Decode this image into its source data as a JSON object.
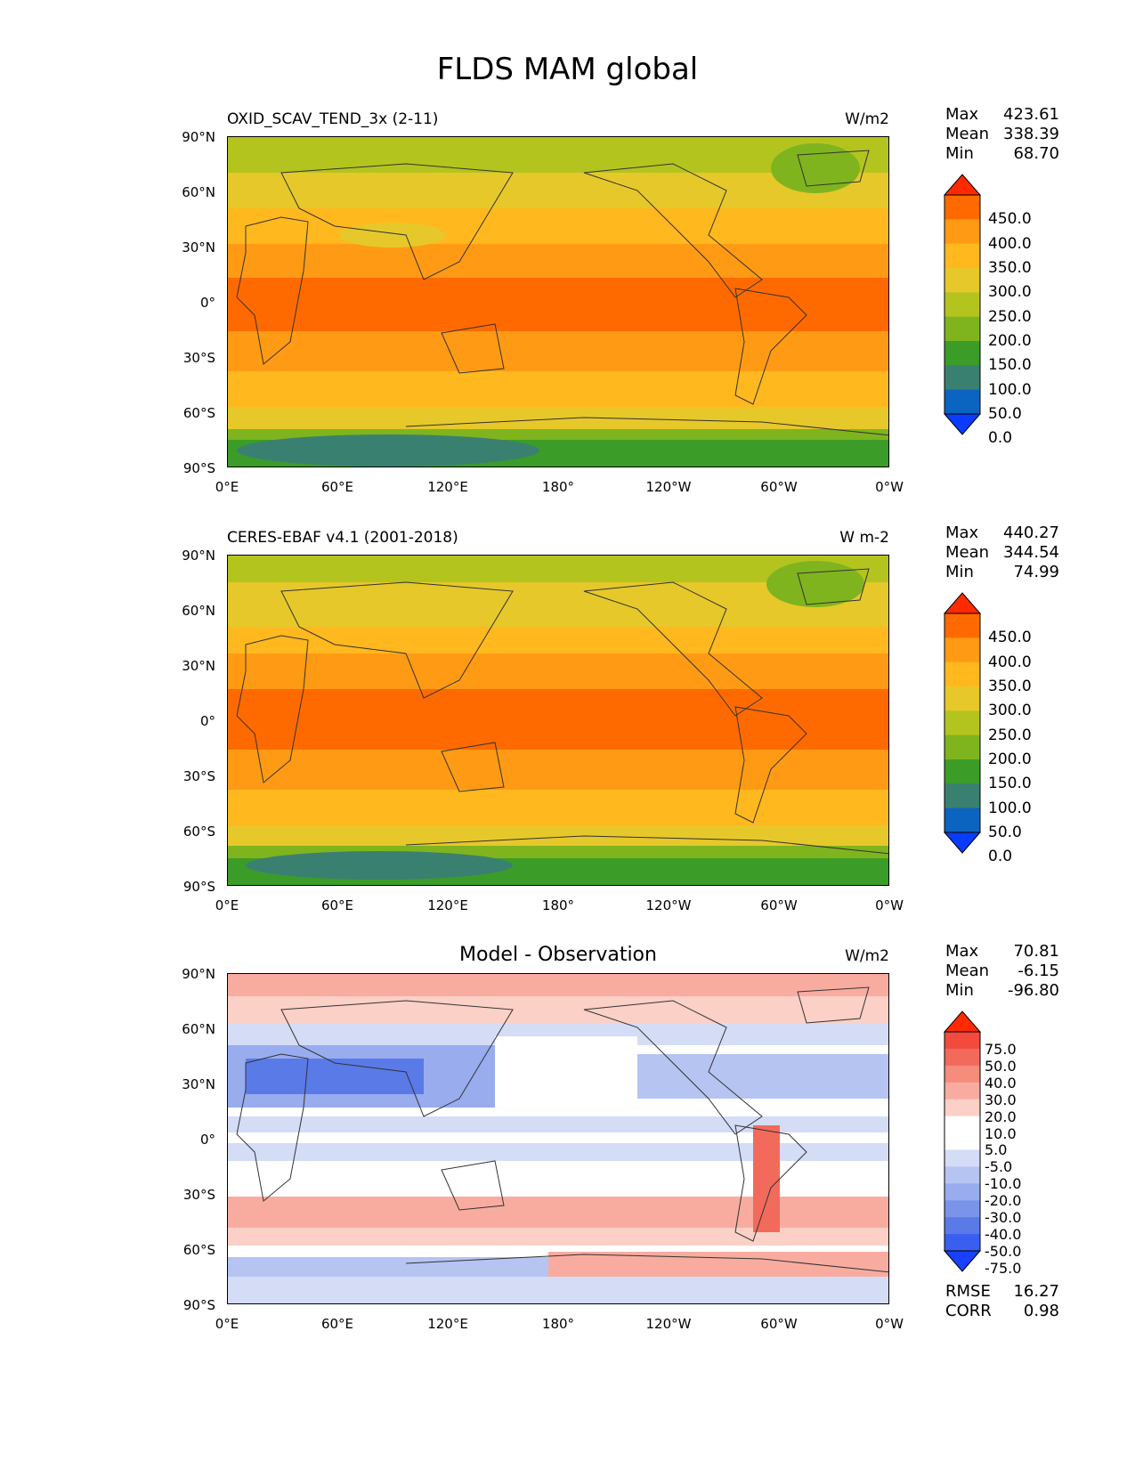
{
  "figure": {
    "title": "FLDS MAM global"
  },
  "axes": {
    "lat_labels": [
      "90°N",
      "60°N",
      "30°N",
      "0°",
      "30°S",
      "60°S",
      "90°S"
    ],
    "lon_labels": [
      "0°E",
      "60°E",
      "120°E",
      "180°",
      "120°W",
      "60°W",
      "0°W"
    ]
  },
  "panels": [
    {
      "title": "OXID_SCAV_TEND_3x (2-11)",
      "units": "W/m2",
      "stats": {
        "max_label": "Max",
        "max": "423.61",
        "mean_label": "Mean",
        "mean": "338.39",
        "min_label": "Min",
        "min": "68.70"
      },
      "colorbar": {
        "labels": [
          "450.0",
          "400.0",
          "350.0",
          "300.0",
          "250.0",
          "200.0",
          "150.0",
          "100.0",
          "50.0",
          "0.0"
        ],
        "colors": [
          "#ff2a00",
          "#ff6a00",
          "#ff9a14",
          "#ffb81e",
          "#e6c82a",
          "#b4c41e",
          "#7fb41e",
          "#3c9c28",
          "#3a8070",
          "#0a64c0",
          "#0a3cff"
        ]
      }
    },
    {
      "title": "CERES-EBAF v4.1 (2001-2018)",
      "units": "W m-2",
      "stats": {
        "max_label": "Max",
        "max": "440.27",
        "mean_label": "Mean",
        "mean": "344.54",
        "min_label": "Min",
        "min": "74.99"
      },
      "colorbar": {
        "labels": [
          "450.0",
          "400.0",
          "350.0",
          "300.0",
          "250.0",
          "200.0",
          "150.0",
          "100.0",
          "50.0",
          "0.0"
        ],
        "colors": [
          "#ff2a00",
          "#ff6a00",
          "#ff9a14",
          "#ffb81e",
          "#e6c82a",
          "#b4c41e",
          "#7fb41e",
          "#3c9c28",
          "#3a8070",
          "#0a64c0",
          "#0a3cff"
        ]
      }
    },
    {
      "title": "Model - Observation",
      "units": "W/m2",
      "stats": {
        "max_label": "Max",
        "max": "70.81",
        "mean_label": "Mean",
        "mean": "-6.15",
        "min_label": "Min",
        "min": "-96.80"
      },
      "colorbar": {
        "labels": [
          "75.0",
          "50.0",
          "40.0",
          "30.0",
          "20.0",
          "10.0",
          "5.0",
          "-5.0",
          "-10.0",
          "-20.0",
          "-30.0",
          "-40.0",
          "-50.0",
          "-75.0"
        ],
        "colors": [
          "#ff2a00",
          "#f24a3c",
          "#f26a5c",
          "#f58c7c",
          "#f8aca0",
          "#fbd0c6",
          "#ffffff",
          "#ffffff",
          "#d4dcf6",
          "#b6c4f2",
          "#98acee",
          "#7a94ea",
          "#5a7ae8",
          "#3a5ef0",
          "#1a40ff"
        ]
      },
      "error_stats": {
        "rmse_label": "RMSE",
        "rmse": "16.27",
        "corr_label": "CORR",
        "corr": "0.98"
      }
    }
  ]
}
